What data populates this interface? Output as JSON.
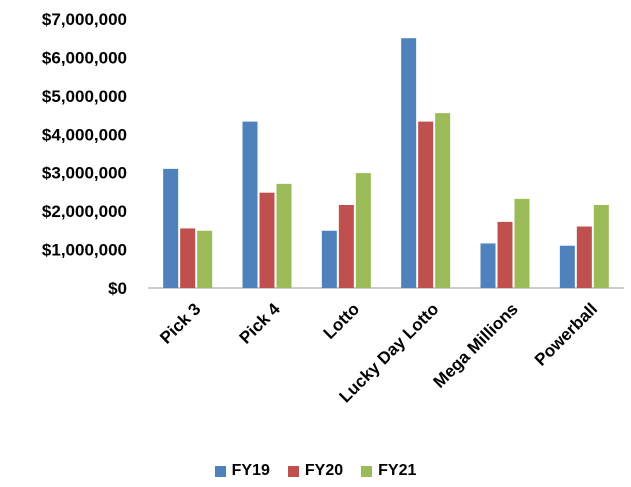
{
  "chart_data": {
    "type": "bar",
    "title": "",
    "xlabel": "",
    "ylabel": "",
    "categories": [
      "Pick 3",
      "Pick 4",
      "Lotto",
      "Lucky Day Lotto",
      "Mega Millions",
      "Powerball"
    ],
    "series": [
      {
        "name": "FY19",
        "color": "#4F81BD",
        "values": [
          3100000,
          4330000,
          1490000,
          6500000,
          1160000,
          1100000
        ]
      },
      {
        "name": "FY20",
        "color": "#C0504D",
        "values": [
          1550000,
          2480000,
          2160000,
          4330000,
          1720000,
          1600000
        ]
      },
      {
        "name": "FY21",
        "color": "#9BBB59",
        "values": [
          1490000,
          2710000,
          2990000,
          4550000,
          2320000,
          2160000
        ]
      }
    ],
    "ylim": [
      0,
      7000000
    ],
    "yticks": [
      0,
      1000000,
      2000000,
      3000000,
      4000000,
      5000000,
      6000000,
      7000000
    ],
    "ytick_labels": [
      "$0",
      "$1,000,000",
      "$2,000,000",
      "$3,000,000",
      "$4,000,000",
      "$5,000,000",
      "$6,000,000",
      "$7,000,000"
    ],
    "grid": false,
    "legend_position": "bottom"
  }
}
